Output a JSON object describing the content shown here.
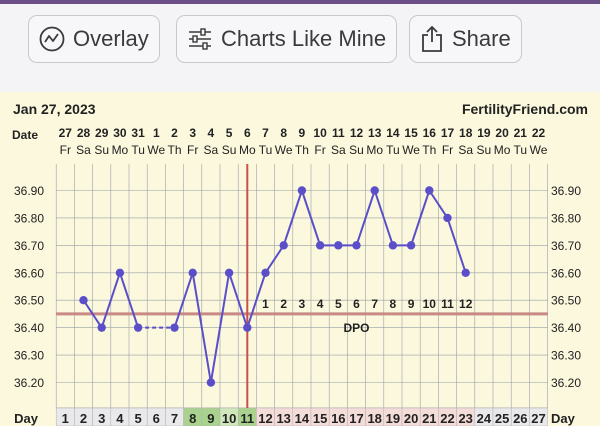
{
  "toolbar": {
    "overlay_label": "Overlay",
    "charts_like_mine_label": "Charts Like Mine",
    "share_label": "Share",
    "icons": [
      "line-chart-icon",
      "sliders-icon",
      "share-icon"
    ]
  },
  "chart_data": {
    "type": "line",
    "header_date": "Jan 27, 2023",
    "site": "FertilityFriend.com",
    "date_row_label": "Date",
    "day_row_label": "Day",
    "dates": [
      "27",
      "28",
      "29",
      "30",
      "31",
      "1",
      "2",
      "3",
      "4",
      "5",
      "6",
      "7",
      "8",
      "9",
      "10",
      "11",
      "12",
      "13",
      "14",
      "15",
      "16",
      "17",
      "18",
      "19",
      "20",
      "21",
      "22"
    ],
    "weekdays": [
      "Fr",
      "Sa",
      "Su",
      "Mo",
      "Tu",
      "We",
      "Th",
      "Fr",
      "Sa",
      "Su",
      "Mo",
      "Tu",
      "We",
      "Th",
      "Fr",
      "Sa",
      "Su",
      "Mo",
      "Tu",
      "We",
      "Th",
      "Fr",
      "Sa",
      "Su",
      "Mo",
      "Tu",
      "We"
    ],
    "cycle_days": [
      "1",
      "2",
      "3",
      "4",
      "5",
      "6",
      "7",
      "8",
      "9",
      "10",
      "11",
      "12",
      "13",
      "14",
      "15",
      "16",
      "17",
      "18",
      "19",
      "20",
      "21",
      "22",
      "23",
      "24",
      "25",
      "26",
      "27"
    ],
    "temperatures": [
      null,
      36.5,
      36.4,
      36.6,
      36.4,
      null,
      36.4,
      36.6,
      36.2,
      36.6,
      36.4,
      36.6,
      36.7,
      36.9,
      36.7,
      36.7,
      36.7,
      36.9,
      36.7,
      36.7,
      36.9,
      36.8,
      36.6,
      null,
      null,
      null,
      null
    ],
    "dashed_segment_days": [
      5,
      7
    ],
    "y_ticks": [
      "36.90",
      "36.80",
      "36.70",
      "36.60",
      "36.50",
      "36.40",
      "36.30",
      "36.20"
    ],
    "ylim": [
      36.15,
      36.95
    ],
    "coverline": 36.45,
    "ovulation_day": 11,
    "dpo_label": "DPO",
    "dpo_numbers": [
      "1",
      "2",
      "3",
      "4",
      "5",
      "6",
      "7",
      "8",
      "9",
      "10",
      "11",
      "12"
    ],
    "day_colors": {
      "8": "#a9d28e",
      "9": "#a9d28e",
      "10": "#cfe7bb",
      "11": "#a9d28e",
      "12": "#f4dcd8",
      "13": "#f4dcd8",
      "14": "#f4dcd8",
      "15": "#f4dcd8",
      "16": "#f4dcd8",
      "17": "#f4dcd8",
      "18": "#f4dcd8",
      "19": "#f4dcd8",
      "20": "#f4dcd8",
      "21": "#f4dcd8",
      "22": "#f4dcd8",
      "23": "#f4dcd8"
    },
    "colors": {
      "line": "#5a4fc9",
      "coverline": "#c98a86",
      "ovulation": "#c9504a",
      "chart_bg": "#fbf8dd",
      "grid": "#9aa0a6"
    }
  }
}
